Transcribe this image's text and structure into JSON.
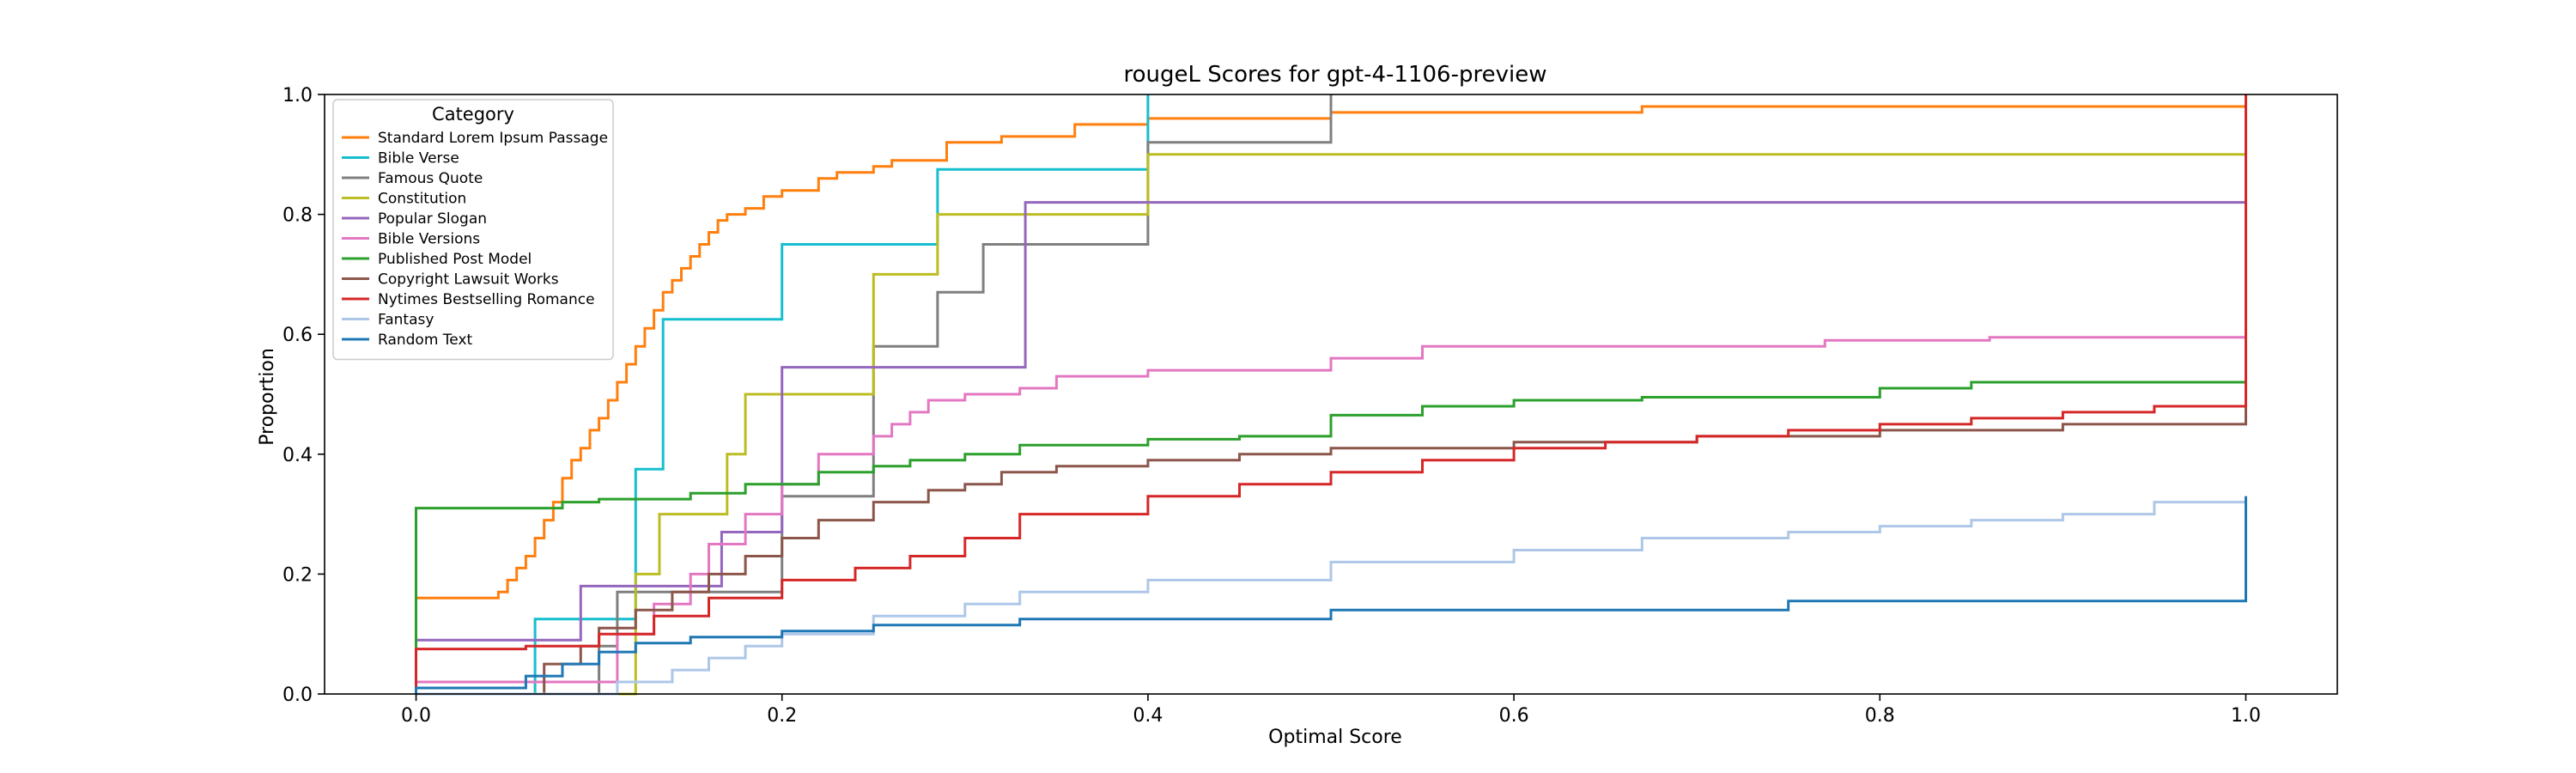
{
  "chart_data": {
    "type": "line",
    "step": true,
    "title": "rougeL Scores for gpt-4-1106-preview",
    "xlabel": "Optimal Score",
    "ylabel": "Proportion",
    "xlim": [
      -0.05,
      1.05
    ],
    "ylim": [
      0.0,
      1.0
    ],
    "xticks": [
      "0.0",
      "0.2",
      "0.4",
      "0.6",
      "0.8",
      "1.0"
    ],
    "yticks": [
      "0.0",
      "0.2",
      "0.4",
      "0.6",
      "0.8",
      "1.0"
    ],
    "grid": false,
    "legend": {
      "title": "Category",
      "placement": "top-left"
    },
    "series": [
      {
        "name": "Standard Lorem Ipsum Passage",
        "color": "#ff7f0e",
        "x": [
          0.0,
          0.045,
          0.05,
          0.055,
          0.06,
          0.065,
          0.07,
          0.075,
          0.08,
          0.085,
          0.09,
          0.095,
          0.1,
          0.105,
          0.11,
          0.115,
          0.12,
          0.125,
          0.13,
          0.135,
          0.14,
          0.145,
          0.15,
          0.155,
          0.16,
          0.165,
          0.17,
          0.18,
          0.19,
          0.2,
          0.22,
          0.23,
          0.25,
          0.26,
          0.29,
          0.32,
          0.36,
          0.4,
          0.5,
          0.67,
          1.0
        ],
        "y": [
          0.16,
          0.17,
          0.19,
          0.21,
          0.23,
          0.26,
          0.29,
          0.32,
          0.36,
          0.39,
          0.41,
          0.44,
          0.46,
          0.49,
          0.52,
          0.55,
          0.58,
          0.61,
          0.64,
          0.67,
          0.69,
          0.71,
          0.73,
          0.75,
          0.77,
          0.79,
          0.8,
          0.81,
          0.83,
          0.84,
          0.86,
          0.87,
          0.88,
          0.89,
          0.92,
          0.93,
          0.95,
          0.96,
          0.97,
          0.98,
          1.0
        ]
      },
      {
        "name": "Bible Verse",
        "color": "#17becf",
        "x": [
          0.0,
          0.065,
          0.12,
          0.135,
          0.2,
          0.285,
          0.4
        ],
        "y": [
          0.0,
          0.125,
          0.375,
          0.625,
          0.75,
          0.875,
          1.0
        ]
      },
      {
        "name": "Famous Quote",
        "color": "#7f7f7f",
        "x": [
          0.0,
          0.1,
          0.11,
          0.2,
          0.25,
          0.285,
          0.31,
          0.4,
          0.5
        ],
        "y": [
          0.0,
          0.08,
          0.17,
          0.33,
          0.58,
          0.67,
          0.75,
          0.92,
          1.0
        ]
      },
      {
        "name": "Constitution",
        "color": "#bcbd22",
        "x": [
          0.0,
          0.12,
          0.133,
          0.17,
          0.18,
          0.25,
          0.285,
          0.4,
          1.0
        ],
        "y": [
          0.0,
          0.2,
          0.3,
          0.4,
          0.5,
          0.7,
          0.8,
          0.9,
          1.0
        ]
      },
      {
        "name": "Popular Slogan",
        "color": "#9467bd",
        "x": [
          0.0,
          0.09,
          0.167,
          0.2,
          0.333,
          1.0
        ],
        "y": [
          0.09,
          0.18,
          0.27,
          0.545,
          0.82,
          1.0
        ]
      },
      {
        "name": "Bible Versions",
        "color": "#e377c2",
        "x": [
          0.0,
          0.11,
          0.13,
          0.15,
          0.16,
          0.18,
          0.2,
          0.22,
          0.25,
          0.26,
          0.27,
          0.28,
          0.3,
          0.33,
          0.35,
          0.4,
          0.5,
          0.55,
          0.77,
          0.86,
          1.0
        ],
        "y": [
          0.02,
          0.1,
          0.15,
          0.2,
          0.25,
          0.3,
          0.35,
          0.4,
          0.43,
          0.45,
          0.47,
          0.49,
          0.5,
          0.51,
          0.53,
          0.54,
          0.56,
          0.58,
          0.59,
          0.595,
          1.0
        ]
      },
      {
        "name": "Published Post Model",
        "color": "#2ca02c",
        "x": [
          0.0,
          0.08,
          0.1,
          0.15,
          0.18,
          0.22,
          0.25,
          0.27,
          0.3,
          0.33,
          0.4,
          0.45,
          0.5,
          0.55,
          0.6,
          0.67,
          0.8,
          0.85,
          1.0
        ],
        "y": [
          0.31,
          0.32,
          0.325,
          0.335,
          0.35,
          0.37,
          0.38,
          0.39,
          0.4,
          0.415,
          0.425,
          0.43,
          0.465,
          0.48,
          0.49,
          0.495,
          0.51,
          0.52,
          1.0
        ]
      },
      {
        "name": "Copyright Lawsuit Works",
        "color": "#8c564b",
        "x": [
          0.0,
          0.07,
          0.09,
          0.1,
          0.12,
          0.14,
          0.16,
          0.18,
          0.2,
          0.22,
          0.25,
          0.28,
          0.3,
          0.32,
          0.35,
          0.4,
          0.45,
          0.5,
          0.6,
          0.7,
          0.8,
          0.9,
          1.0
        ],
        "y": [
          0.0,
          0.05,
          0.08,
          0.11,
          0.14,
          0.17,
          0.2,
          0.23,
          0.26,
          0.29,
          0.32,
          0.34,
          0.35,
          0.37,
          0.38,
          0.39,
          0.4,
          0.41,
          0.42,
          0.43,
          0.44,
          0.45,
          1.0
        ]
      },
      {
        "name": "Nytimes Bestselling Romance",
        "color": "#d62728",
        "x": [
          0.0,
          0.06,
          0.1,
          0.13,
          0.16,
          0.2,
          0.24,
          0.27,
          0.3,
          0.33,
          0.4,
          0.45,
          0.5,
          0.55,
          0.6,
          0.65,
          0.7,
          0.75,
          0.8,
          0.85,
          0.9,
          0.95,
          1.0
        ],
        "y": [
          0.075,
          0.08,
          0.1,
          0.13,
          0.16,
          0.19,
          0.21,
          0.23,
          0.26,
          0.3,
          0.33,
          0.35,
          0.37,
          0.39,
          0.41,
          0.42,
          0.43,
          0.44,
          0.45,
          0.46,
          0.47,
          0.48,
          1.0
        ]
      },
      {
        "name": "Fantasy",
        "color": "#aec7e8",
        "x": [
          0.0,
          0.11,
          0.14,
          0.16,
          0.18,
          0.2,
          0.25,
          0.3,
          0.33,
          0.4,
          0.5,
          0.6,
          0.67,
          0.75,
          0.8,
          0.85,
          0.9,
          0.95,
          1.0
        ],
        "y": [
          0.0,
          0.02,
          0.04,
          0.06,
          0.08,
          0.1,
          0.13,
          0.15,
          0.17,
          0.19,
          0.22,
          0.24,
          0.26,
          0.27,
          0.28,
          0.29,
          0.3,
          0.32,
          0.33
        ]
      },
      {
        "name": "Random Text",
        "color": "#1f77b4",
        "x": [
          0.0,
          0.06,
          0.08,
          0.1,
          0.12,
          0.15,
          0.2,
          0.25,
          0.33,
          0.5,
          0.75,
          1.0
        ],
        "y": [
          0.01,
          0.03,
          0.05,
          0.07,
          0.085,
          0.095,
          0.105,
          0.115,
          0.125,
          0.14,
          0.155,
          0.33
        ]
      }
    ]
  }
}
